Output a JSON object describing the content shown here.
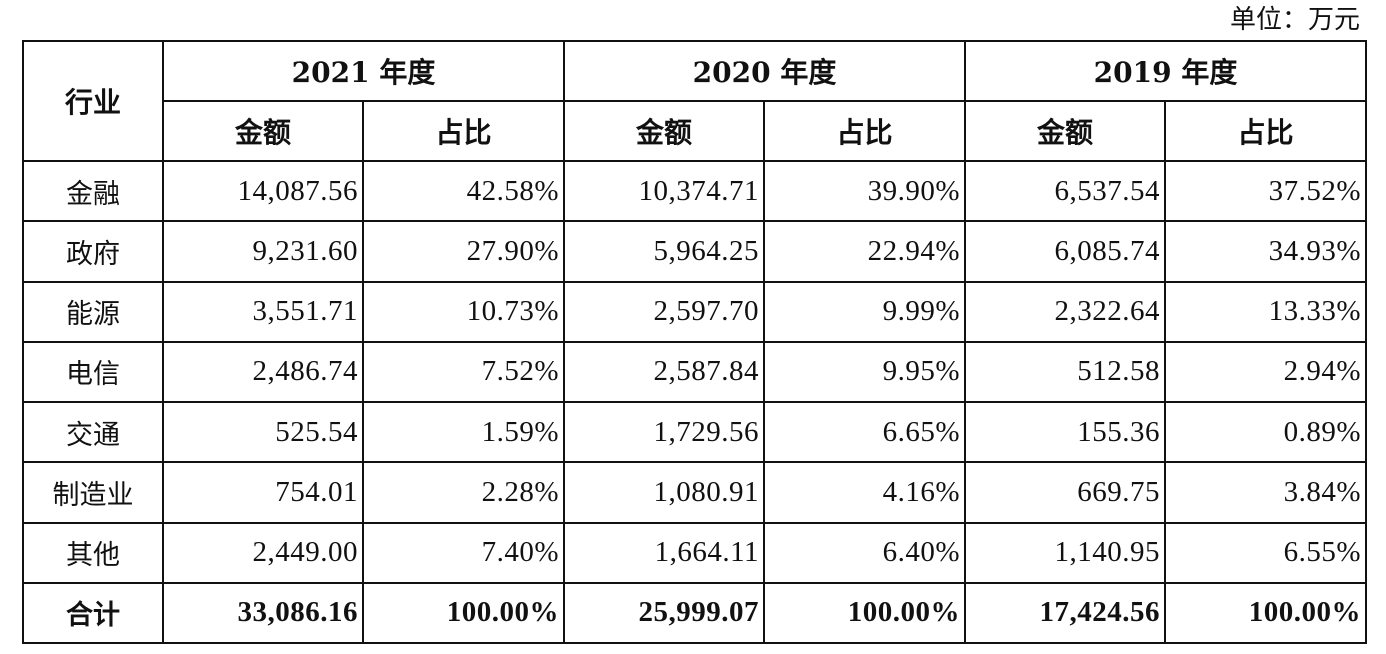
{
  "unit_label": "单位：万元",
  "header": {
    "industry": "行业",
    "years": [
      "2021 年度",
      "2020 年度",
      "2019 年度"
    ],
    "amount": "金额",
    "share": "占比"
  },
  "rows": [
    {
      "industry": "金融",
      "values": [
        "14,087.56",
        "42.58%",
        "10,374.71",
        "39.90%",
        "6,537.54",
        "37.52%"
      ]
    },
    {
      "industry": "政府",
      "values": [
        "9,231.60",
        "27.90%",
        "5,964.25",
        "22.94%",
        "6,085.74",
        "34.93%"
      ]
    },
    {
      "industry": "能源",
      "values": [
        "3,551.71",
        "10.73%",
        "2,597.70",
        "9.99%",
        "2,322.64",
        "13.33%"
      ]
    },
    {
      "industry": "电信",
      "values": [
        "2,486.74",
        "7.52%",
        "2,587.84",
        "9.95%",
        "512.58",
        "2.94%"
      ]
    },
    {
      "industry": "交通",
      "values": [
        "525.54",
        "1.59%",
        "1,729.56",
        "6.65%",
        "155.36",
        "0.89%"
      ]
    },
    {
      "industry": "制造业",
      "values": [
        "754.01",
        "2.28%",
        "1,080.91",
        "4.16%",
        "669.75",
        "3.84%"
      ]
    },
    {
      "industry": "其他",
      "values": [
        "2,449.00",
        "7.40%",
        "1,664.11",
        "6.40%",
        "1,140.95",
        "6.55%"
      ]
    }
  ],
  "total": {
    "industry": "合计",
    "values": [
      "33,086.16",
      "100.00%",
      "25,999.07",
      "100.00%",
      "17,424.56",
      "100.00%"
    ]
  }
}
